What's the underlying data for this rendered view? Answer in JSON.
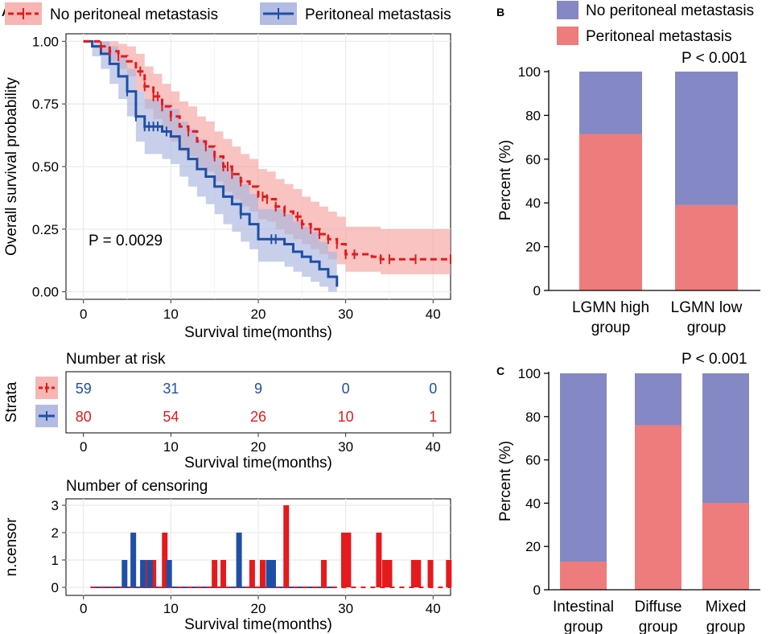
{
  "panels": {
    "A": "A",
    "B": "B",
    "C": "C"
  },
  "colors": {
    "no_met_line": "#e41a1c",
    "no_met_band": "#f4a3a0",
    "met_line": "#1f4fa5",
    "met_band": "#a9b6de",
    "bar_no_met": "#8488c4",
    "bar_met": "#ee7c7d",
    "grid": "#ebebeb"
  },
  "legend_km": [
    {
      "name": "No peritoneal metastasis",
      "line": "#e41a1c",
      "fill": "#f7b6b2",
      "dashed": true
    },
    {
      "name": "Peritoneal metastasis",
      "line": "#1f4fa5",
      "fill": "#b3bde3",
      "dashed": false
    }
  ],
  "legend_bar": [
    {
      "name": "No peritoneal metastasis",
      "color": "#8488c4"
    },
    {
      "name": "Peritoneal metastasis",
      "color": "#ee7c7d"
    }
  ],
  "chart_data": [
    {
      "id": "km",
      "type": "line",
      "title": "",
      "xlabel": "Survival time(months)",
      "ylabel": "Overall survival probability",
      "xlim": [
        -2,
        42
      ],
      "ylim": [
        -0.03,
        1.03
      ],
      "xticks": [
        0,
        10,
        20,
        30,
        40
      ],
      "yticks": [
        0,
        0.25,
        0.5,
        0.75,
        1.0
      ],
      "ytick_labels": [
        "0.00",
        "0.25",
        "0.50",
        "0.75",
        "1.00"
      ],
      "annotation": "P = 0.0029",
      "series": [
        {
          "name": "No peritoneal metastasis",
          "dashed": true,
          "steps": [
            [
              0,
              1.0
            ],
            [
              1,
              1.0
            ],
            [
              2,
              0.98
            ],
            [
              3,
              0.96
            ],
            [
              4,
              0.94
            ],
            [
              5,
              0.92
            ],
            [
              6,
              0.88
            ],
            [
              7,
              0.82
            ],
            [
              8,
              0.78
            ],
            [
              9,
              0.74
            ],
            [
              10,
              0.7
            ],
            [
              11,
              0.66
            ],
            [
              12,
              0.64
            ],
            [
              13,
              0.6
            ],
            [
              14,
              0.58
            ],
            [
              15,
              0.54
            ],
            [
              16,
              0.5
            ],
            [
              17,
              0.47
            ],
            [
              18,
              0.44
            ],
            [
              19,
              0.42
            ],
            [
              20,
              0.38
            ],
            [
              21,
              0.37
            ],
            [
              22,
              0.34
            ],
            [
              23,
              0.32
            ],
            [
              24,
              0.3
            ],
            [
              25,
              0.27
            ],
            [
              26,
              0.25
            ],
            [
              27,
              0.23
            ],
            [
              28,
              0.21
            ],
            [
              29,
              0.19
            ],
            [
              30,
              0.15
            ],
            [
              31,
              0.15
            ],
            [
              33,
              0.14
            ],
            [
              34,
              0.13
            ],
            [
              36,
              0.13
            ],
            [
              38,
              0.13
            ],
            [
              42,
              0.13
            ]
          ],
          "upper": [
            [
              0,
              1.0
            ],
            [
              1,
              1.0
            ],
            [
              2,
              1.0
            ],
            [
              3,
              1.0
            ],
            [
              4,
              0.99
            ],
            [
              5,
              0.98
            ],
            [
              6,
              0.95
            ],
            [
              7,
              0.9
            ],
            [
              8,
              0.87
            ],
            [
              9,
              0.83
            ],
            [
              10,
              0.8
            ],
            [
              11,
              0.76
            ],
            [
              12,
              0.74
            ],
            [
              13,
              0.7
            ],
            [
              14,
              0.68
            ],
            [
              15,
              0.64
            ],
            [
              16,
              0.61
            ],
            [
              17,
              0.58
            ],
            [
              18,
              0.55
            ],
            [
              19,
              0.53
            ],
            [
              20,
              0.49
            ],
            [
              21,
              0.48
            ],
            [
              22,
              0.45
            ],
            [
              23,
              0.43
            ],
            [
              24,
              0.41
            ],
            [
              25,
              0.38
            ],
            [
              26,
              0.36
            ],
            [
              27,
              0.34
            ],
            [
              28,
              0.32
            ],
            [
              29,
              0.3
            ],
            [
              30,
              0.26
            ],
            [
              33,
              0.26
            ],
            [
              34,
              0.25
            ],
            [
              42,
              0.25
            ]
          ],
          "lower": [
            [
              0,
              1.0
            ],
            [
              1,
              1.0
            ],
            [
              2,
              0.95
            ],
            [
              3,
              0.92
            ],
            [
              4,
              0.89
            ],
            [
              5,
              0.86
            ],
            [
              6,
              0.8
            ],
            [
              7,
              0.73
            ],
            [
              8,
              0.69
            ],
            [
              9,
              0.65
            ],
            [
              10,
              0.6
            ],
            [
              11,
              0.56
            ],
            [
              12,
              0.54
            ],
            [
              13,
              0.5
            ],
            [
              14,
              0.48
            ],
            [
              15,
              0.44
            ],
            [
              16,
              0.4
            ],
            [
              17,
              0.37
            ],
            [
              18,
              0.34
            ],
            [
              19,
              0.32
            ],
            [
              20,
              0.29
            ],
            [
              21,
              0.28
            ],
            [
              22,
              0.25
            ],
            [
              23,
              0.23
            ],
            [
              24,
              0.21
            ],
            [
              25,
              0.19
            ],
            [
              26,
              0.17
            ],
            [
              27,
              0.15
            ],
            [
              28,
              0.13
            ],
            [
              29,
              0.11
            ],
            [
              30,
              0.08
            ],
            [
              33,
              0.08
            ],
            [
              34,
              0.07
            ],
            [
              42,
              0.07
            ]
          ],
          "censor_x": [
            2,
            3,
            4,
            6.5,
            7,
            8,
            8.5,
            9,
            10,
            12,
            14,
            15,
            16,
            16.5,
            17,
            18,
            20.5,
            21,
            22,
            23,
            24.5,
            25,
            26,
            27,
            28,
            29,
            30,
            31,
            34,
            35,
            38,
            42
          ]
        },
        {
          "name": "Peritoneal metastasis",
          "dashed": false,
          "steps": [
            [
              0,
              1.0
            ],
            [
              1,
              0.98
            ],
            [
              2,
              0.95
            ],
            [
              3,
              0.91
            ],
            [
              4,
              0.86
            ],
            [
              5,
              0.8
            ],
            [
              6,
              0.7
            ],
            [
              7,
              0.66
            ],
            [
              8,
              0.66
            ],
            [
              9,
              0.64
            ],
            [
              10,
              0.62
            ],
            [
              11,
              0.57
            ],
            [
              12,
              0.53
            ],
            [
              13,
              0.49
            ],
            [
              14,
              0.46
            ],
            [
              15,
              0.42
            ],
            [
              16,
              0.38
            ],
            [
              17,
              0.35
            ],
            [
              18,
              0.31
            ],
            [
              19,
              0.27
            ],
            [
              20,
              0.21
            ],
            [
              21,
              0.21
            ],
            [
              22,
              0.21
            ],
            [
              23,
              0.19
            ],
            [
              24,
              0.16
            ],
            [
              25,
              0.14
            ],
            [
              26,
              0.12
            ],
            [
              27,
              0.09
            ],
            [
              28,
              0.06
            ],
            [
              29,
              0.02
            ]
          ],
          "upper": [
            [
              0,
              1.0
            ],
            [
              1,
              1.0
            ],
            [
              2,
              1.0
            ],
            [
              3,
              0.98
            ],
            [
              4,
              0.94
            ],
            [
              5,
              0.89
            ],
            [
              6,
              0.8
            ],
            [
              7,
              0.77
            ],
            [
              8,
              0.77
            ],
            [
              9,
              0.75
            ],
            [
              10,
              0.73
            ],
            [
              11,
              0.68
            ],
            [
              12,
              0.65
            ],
            [
              13,
              0.61
            ],
            [
              14,
              0.58
            ],
            [
              15,
              0.54
            ],
            [
              16,
              0.5
            ],
            [
              17,
              0.47
            ],
            [
              18,
              0.43
            ],
            [
              19,
              0.39
            ],
            [
              20,
              0.33
            ],
            [
              21,
              0.33
            ],
            [
              22,
              0.33
            ],
            [
              23,
              0.31
            ],
            [
              24,
              0.28
            ],
            [
              25,
              0.26
            ],
            [
              26,
              0.24
            ],
            [
              27,
              0.2
            ],
            [
              28,
              0.16
            ],
            [
              29,
              0.1
            ]
          ],
          "lower": [
            [
              0,
              1.0
            ],
            [
              1,
              0.94
            ],
            [
              2,
              0.89
            ],
            [
              3,
              0.83
            ],
            [
              4,
              0.77
            ],
            [
              5,
              0.7
            ],
            [
              6,
              0.6
            ],
            [
              7,
              0.55
            ],
            [
              8,
              0.55
            ],
            [
              9,
              0.53
            ],
            [
              10,
              0.51
            ],
            [
              11,
              0.46
            ],
            [
              12,
              0.42
            ],
            [
              13,
              0.38
            ],
            [
              14,
              0.35
            ],
            [
              15,
              0.31
            ],
            [
              16,
              0.27
            ],
            [
              17,
              0.24
            ],
            [
              18,
              0.2
            ],
            [
              19,
              0.17
            ],
            [
              20,
              0.12
            ],
            [
              21,
              0.12
            ],
            [
              22,
              0.12
            ],
            [
              23,
              0.1
            ],
            [
              24,
              0.08
            ],
            [
              25,
              0.06
            ],
            [
              26,
              0.04
            ],
            [
              27,
              0.02
            ],
            [
              28,
              0.0
            ],
            [
              29,
              0.0
            ]
          ],
          "censor_x": [
            5,
            6,
            7,
            7.5,
            8,
            8.5,
            9.5,
            18,
            21.5,
            22
          ]
        }
      ]
    },
    {
      "id": "risk",
      "type": "table",
      "title": "Number at risk",
      "xlabel": "Survival time(months)",
      "ylabel": "Strata",
      "xticks": [
        0,
        10,
        20,
        30,
        40
      ],
      "rows": [
        {
          "stratum": "No peritoneal metastasis",
          "values": [
            "59",
            "31",
            "9",
            "0",
            "0"
          ],
          "text_color": "#1f4fa5"
        },
        {
          "stratum": "Peritoneal metastasis",
          "values": [
            "80",
            "54",
            "26",
            "10",
            "1"
          ],
          "text_color": "#e41a1c"
        }
      ]
    },
    {
      "id": "censor",
      "type": "bar",
      "title": "Number of censoring",
      "xlabel": "Survival time(months)",
      "ylabel": "n.censor",
      "xlim": [
        -2,
        42
      ],
      "ylim": [
        0,
        3.1
      ],
      "xticks": [
        0,
        10,
        20,
        30,
        40
      ],
      "yticks": [
        0,
        1,
        2,
        3
      ],
      "series": [
        {
          "name": "No peritoneal metastasis",
          "color": "#e41a1c",
          "x": [
            7,
            8,
            9.3,
            15,
            16,
            19.3,
            20.5,
            23.2,
            27.5,
            29.8,
            30.3,
            33.8,
            34.5,
            35,
            37.8,
            38.3,
            39.7,
            41.8
          ],
          "values": [
            1,
            1,
            2,
            1,
            1,
            1,
            1,
            3,
            1,
            2,
            2,
            2,
            1,
            1,
            1,
            1,
            1,
            1
          ]
        },
        {
          "name": "Peritoneal metastasis",
          "color": "#1f4fa5",
          "x": [
            4.7,
            5.7,
            6.8,
            7.6,
            9.8,
            17.8,
            21.2,
            21.7
          ],
          "values": [
            1,
            2,
            1,
            1,
            1,
            2,
            1,
            1
          ]
        }
      ]
    },
    {
      "id": "B",
      "type": "bar",
      "stacked": true,
      "title": "P < 0.001",
      "xlabel": "",
      "ylabel": "Percent (%)",
      "ylim": [
        0,
        100
      ],
      "yticks": [
        0,
        20,
        40,
        60,
        80,
        100
      ],
      "categories": [
        [
          "LGMN high",
          "group"
        ],
        [
          "LGMN low",
          "group"
        ]
      ],
      "series": [
        {
          "name": "Peritoneal metastasis",
          "values": [
            71.5,
            39
          ]
        },
        {
          "name": "No peritoneal metastasis",
          "values": [
            28.5,
            61
          ]
        }
      ]
    },
    {
      "id": "C",
      "type": "bar",
      "stacked": true,
      "title": "P < 0.001",
      "xlabel": "",
      "ylabel": "Percent (%)",
      "ylim": [
        0,
        100
      ],
      "yticks": [
        0,
        20,
        40,
        60,
        80,
        100
      ],
      "categories": [
        [
          "Intestinal",
          "group"
        ],
        [
          "Diffuse",
          "group"
        ],
        [
          "Mixed",
          "group"
        ]
      ],
      "series": [
        {
          "name": "Peritoneal metastasis",
          "values": [
            13,
            76,
            40
          ]
        },
        {
          "name": "No peritoneal metastasis",
          "values": [
            87,
            24,
            60
          ]
        }
      ]
    }
  ]
}
